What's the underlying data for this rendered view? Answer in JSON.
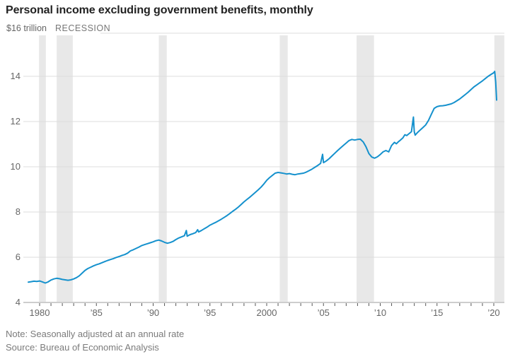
{
  "title": "Personal income excluding government benefits, monthly",
  "note": "Note: Seasonally adjusted at an annual rate",
  "source": "Source: Bureau of Economic Analysis",
  "colors": {
    "line": "#1591cd",
    "recession_band": "#e8e8e8",
    "grid": "#dcdcdc",
    "axis": "#9b9b9b",
    "tick": "#555555",
    "label": "#666666",
    "title": "#222222",
    "footnote": "#7b7b7b"
  },
  "chart_data": {
    "type": "line",
    "title": "Personal income excluding government benefits, monthly",
    "xlabel": "",
    "ylabel": "$ trillion",
    "unit_label": "$16 trillion",
    "recession_label": "RECESSION",
    "ylim": [
      4,
      16
    ],
    "xlim": [
      1978.55,
      2020.95
    ],
    "grid": true,
    "legend": false,
    "y_ticks": [
      {
        "value": 14,
        "label": "14"
      },
      {
        "value": 12,
        "label": "12"
      },
      {
        "value": 10,
        "label": "10"
      },
      {
        "value": 8,
        "label": "8"
      },
      {
        "value": 6,
        "label": "6"
      },
      {
        "value": 4,
        "label": "4"
      }
    ],
    "x_ticks": [
      {
        "year": 1980,
        "label": "1980"
      },
      {
        "year": 1985,
        "label": "’85"
      },
      {
        "year": 1990,
        "label": "’90"
      },
      {
        "year": 1995,
        "label": "’95"
      },
      {
        "year": 2000,
        "label": "2000"
      },
      {
        "year": 2005,
        "label": "’05"
      },
      {
        "year": 2010,
        "label": "’10"
      },
      {
        "year": 2015,
        "label": "’15"
      },
      {
        "year": 2020,
        "label": "’20"
      }
    ],
    "minor_tick_years": {
      "start": 1980,
      "end": 2020,
      "step": 1
    },
    "recessions": [
      [
        1979.95,
        1980.55
      ],
      [
        1981.5,
        1982.92
      ],
      [
        1990.5,
        1991.2
      ],
      [
        2001.15,
        2001.85
      ],
      [
        2007.92,
        2009.45
      ],
      [
        2020.05,
        2020.93
      ]
    ],
    "series": [
      {
        "name": "Personal income excluding government benefits",
        "points": [
          [
            1979.0,
            4.9
          ],
          [
            1979.25,
            4.92
          ],
          [
            1979.5,
            4.94
          ],
          [
            1979.75,
            4.93
          ],
          [
            1980.0,
            4.95
          ],
          [
            1980.25,
            4.91
          ],
          [
            1980.5,
            4.86
          ],
          [
            1980.75,
            4.91
          ],
          [
            1981.0,
            4.99
          ],
          [
            1981.25,
            5.04
          ],
          [
            1981.5,
            5.07
          ],
          [
            1981.75,
            5.05
          ],
          [
            1982.0,
            5.02
          ],
          [
            1982.25,
            5.0
          ],
          [
            1982.5,
            4.98
          ],
          [
            1982.75,
            5.0
          ],
          [
            1983.0,
            5.04
          ],
          [
            1983.25,
            5.1
          ],
          [
            1983.5,
            5.18
          ],
          [
            1983.75,
            5.3
          ],
          [
            1984.0,
            5.42
          ],
          [
            1984.25,
            5.5
          ],
          [
            1984.5,
            5.56
          ],
          [
            1984.75,
            5.62
          ],
          [
            1985.0,
            5.67
          ],
          [
            1985.25,
            5.71
          ],
          [
            1985.5,
            5.76
          ],
          [
            1985.75,
            5.81
          ],
          [
            1986.0,
            5.86
          ],
          [
            1986.25,
            5.9
          ],
          [
            1986.5,
            5.94
          ],
          [
            1986.75,
            5.99
          ],
          [
            1987.0,
            6.03
          ],
          [
            1987.25,
            6.08
          ],
          [
            1987.5,
            6.12
          ],
          [
            1987.75,
            6.18
          ],
          [
            1988.0,
            6.28
          ],
          [
            1988.25,
            6.33
          ],
          [
            1988.5,
            6.39
          ],
          [
            1988.75,
            6.45
          ],
          [
            1989.0,
            6.52
          ],
          [
            1989.25,
            6.56
          ],
          [
            1989.5,
            6.6
          ],
          [
            1989.75,
            6.64
          ],
          [
            1990.0,
            6.68
          ],
          [
            1990.25,
            6.73
          ],
          [
            1990.5,
            6.76
          ],
          [
            1990.75,
            6.72
          ],
          [
            1991.0,
            6.66
          ],
          [
            1991.25,
            6.62
          ],
          [
            1991.5,
            6.65
          ],
          [
            1991.75,
            6.7
          ],
          [
            1992.0,
            6.78
          ],
          [
            1992.25,
            6.85
          ],
          [
            1992.5,
            6.9
          ],
          [
            1992.75,
            6.95
          ],
          [
            1992.92,
            7.18
          ],
          [
            1993.0,
            6.93
          ],
          [
            1993.25,
            7.0
          ],
          [
            1993.5,
            7.04
          ],
          [
            1993.75,
            7.09
          ],
          [
            1993.92,
            7.22
          ],
          [
            1994.0,
            7.12
          ],
          [
            1994.25,
            7.18
          ],
          [
            1994.5,
            7.26
          ],
          [
            1994.75,
            7.33
          ],
          [
            1995.0,
            7.42
          ],
          [
            1995.25,
            7.48
          ],
          [
            1995.5,
            7.54
          ],
          [
            1995.75,
            7.61
          ],
          [
            1996.0,
            7.68
          ],
          [
            1996.25,
            7.76
          ],
          [
            1996.5,
            7.84
          ],
          [
            1996.75,
            7.93
          ],
          [
            1997.0,
            8.03
          ],
          [
            1997.25,
            8.12
          ],
          [
            1997.5,
            8.22
          ],
          [
            1997.75,
            8.33
          ],
          [
            1998.0,
            8.45
          ],
          [
            1998.25,
            8.55
          ],
          [
            1998.5,
            8.65
          ],
          [
            1998.75,
            8.76
          ],
          [
            1999.0,
            8.87
          ],
          [
            1999.25,
            8.98
          ],
          [
            1999.5,
            9.1
          ],
          [
            1999.75,
            9.24
          ],
          [
            2000.0,
            9.4
          ],
          [
            2000.25,
            9.52
          ],
          [
            2000.5,
            9.62
          ],
          [
            2000.75,
            9.72
          ],
          [
            2001.0,
            9.75
          ],
          [
            2001.25,
            9.73
          ],
          [
            2001.5,
            9.71
          ],
          [
            2001.75,
            9.68
          ],
          [
            2002.0,
            9.7
          ],
          [
            2002.25,
            9.67
          ],
          [
            2002.5,
            9.65
          ],
          [
            2002.75,
            9.68
          ],
          [
            2003.0,
            9.7
          ],
          [
            2003.25,
            9.72
          ],
          [
            2003.5,
            9.77
          ],
          [
            2003.75,
            9.83
          ],
          [
            2004.0,
            9.9
          ],
          [
            2004.25,
            9.98
          ],
          [
            2004.5,
            10.06
          ],
          [
            2004.75,
            10.15
          ],
          [
            2004.92,
            10.55
          ],
          [
            2005.0,
            10.18
          ],
          [
            2005.25,
            10.26
          ],
          [
            2005.5,
            10.36
          ],
          [
            2005.75,
            10.48
          ],
          [
            2006.0,
            10.6
          ],
          [
            2006.25,
            10.72
          ],
          [
            2006.5,
            10.83
          ],
          [
            2006.75,
            10.94
          ],
          [
            2007.0,
            11.05
          ],
          [
            2007.25,
            11.16
          ],
          [
            2007.5,
            11.21
          ],
          [
            2007.75,
            11.18
          ],
          [
            2008.0,
            11.21
          ],
          [
            2008.25,
            11.22
          ],
          [
            2008.5,
            11.1
          ],
          [
            2008.75,
            10.88
          ],
          [
            2009.0,
            10.58
          ],
          [
            2009.25,
            10.43
          ],
          [
            2009.5,
            10.38
          ],
          [
            2009.75,
            10.44
          ],
          [
            2010.0,
            10.54
          ],
          [
            2010.25,
            10.66
          ],
          [
            2010.5,
            10.72
          ],
          [
            2010.75,
            10.66
          ],
          [
            2011.0,
            10.94
          ],
          [
            2011.25,
            11.08
          ],
          [
            2011.42,
            11.02
          ],
          [
            2011.58,
            11.1
          ],
          [
            2011.75,
            11.17
          ],
          [
            2012.0,
            11.28
          ],
          [
            2012.17,
            11.42
          ],
          [
            2012.33,
            11.38
          ],
          [
            2012.5,
            11.45
          ],
          [
            2012.75,
            11.55
          ],
          [
            2012.92,
            12.2
          ],
          [
            2013.0,
            11.55
          ],
          [
            2013.08,
            11.4
          ],
          [
            2013.25,
            11.5
          ],
          [
            2013.5,
            11.62
          ],
          [
            2013.75,
            11.73
          ],
          [
            2014.0,
            11.85
          ],
          [
            2014.25,
            12.05
          ],
          [
            2014.5,
            12.32
          ],
          [
            2014.75,
            12.58
          ],
          [
            2015.0,
            12.66
          ],
          [
            2015.25,
            12.69
          ],
          [
            2015.5,
            12.7
          ],
          [
            2015.75,
            12.72
          ],
          [
            2016.0,
            12.75
          ],
          [
            2016.25,
            12.78
          ],
          [
            2016.5,
            12.84
          ],
          [
            2016.75,
            12.92
          ],
          [
            2017.0,
            13.0
          ],
          [
            2017.25,
            13.1
          ],
          [
            2017.5,
            13.2
          ],
          [
            2017.75,
            13.3
          ],
          [
            2018.0,
            13.42
          ],
          [
            2018.25,
            13.53
          ],
          [
            2018.5,
            13.62
          ],
          [
            2018.75,
            13.71
          ],
          [
            2019.0,
            13.8
          ],
          [
            2019.25,
            13.9
          ],
          [
            2019.5,
            14.0
          ],
          [
            2019.75,
            14.08
          ],
          [
            2020.0,
            14.16
          ],
          [
            2020.08,
            14.22
          ],
          [
            2020.17,
            13.75
          ],
          [
            2020.25,
            12.95
          ]
        ]
      }
    ]
  }
}
